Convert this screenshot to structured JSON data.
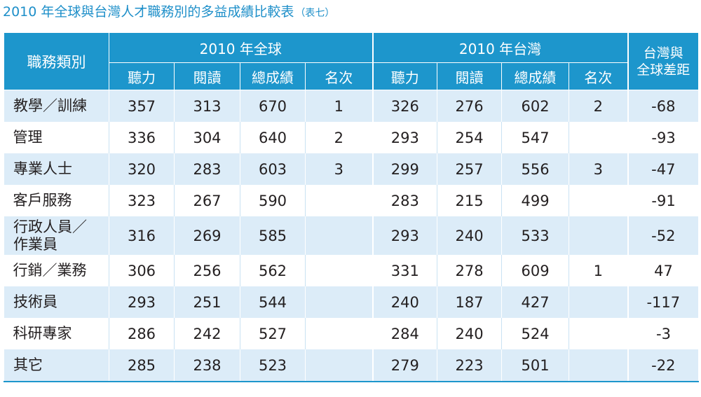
{
  "title": "2010 年全球與台灣人才職務別的多益成績比較表",
  "title_note": "（表七）",
  "colors": {
    "header_bg": "#1d96cc",
    "title": "#1e8fc9",
    "band": "#dcecf8"
  },
  "header": {
    "category": "職務類別",
    "group_global": "2010 年全球",
    "group_taiwan": "2010 年台灣",
    "diff_line1": "台灣與",
    "diff_line2": "全球差距",
    "sub": [
      "聽力",
      "閱讀",
      "總成績",
      "名次"
    ]
  },
  "rows": [
    {
      "category": "教學／訓練",
      "g_listen": "357",
      "g_read": "313",
      "g_total": "670",
      "g_rank": "1",
      "t_listen": "326",
      "t_read": "276",
      "t_total": "602",
      "t_rank": "2",
      "diff": "-68"
    },
    {
      "category": "管理",
      "g_listen": "336",
      "g_read": "304",
      "g_total": "640",
      "g_rank": "2",
      "t_listen": "293",
      "t_read": "254",
      "t_total": "547",
      "t_rank": "",
      "diff": "-93"
    },
    {
      "category": "專業人士",
      "g_listen": "320",
      "g_read": "283",
      "g_total": "603",
      "g_rank": "3",
      "t_listen": "299",
      "t_read": "257",
      "t_total": "556",
      "t_rank": "3",
      "diff": "-47"
    },
    {
      "category": "客戶服務",
      "g_listen": "323",
      "g_read": "267",
      "g_total": "590",
      "g_rank": "",
      "t_listen": "283",
      "t_read": "215",
      "t_total": "499",
      "t_rank": "",
      "diff": "-91"
    },
    {
      "category": "行政人員／作業員",
      "g_listen": "316",
      "g_read": "269",
      "g_total": "585",
      "g_rank": "",
      "t_listen": "293",
      "t_read": "240",
      "t_total": "533",
      "t_rank": "",
      "diff": "-52"
    },
    {
      "category": "行銷／業務",
      "g_listen": "306",
      "g_read": "256",
      "g_total": "562",
      "g_rank": "",
      "t_listen": "331",
      "t_read": "278",
      "t_total": "609",
      "t_rank": "1",
      "diff": "47"
    },
    {
      "category": "技術員",
      "g_listen": "293",
      "g_read": "251",
      "g_total": "544",
      "g_rank": "",
      "t_listen": "240",
      "t_read": "187",
      "t_total": "427",
      "t_rank": "",
      "diff": "-117"
    },
    {
      "category": "科研專家",
      "g_listen": "286",
      "g_read": "242",
      "g_total": "527",
      "g_rank": "",
      "t_listen": "284",
      "t_read": "240",
      "t_total": "524",
      "t_rank": "",
      "diff": "-3"
    },
    {
      "category": "其它",
      "g_listen": "285",
      "g_read": "238",
      "g_total": "523",
      "g_rank": "",
      "t_listen": "279",
      "t_read": "223",
      "t_total": "501",
      "t_rank": "",
      "diff": "-22"
    }
  ]
}
